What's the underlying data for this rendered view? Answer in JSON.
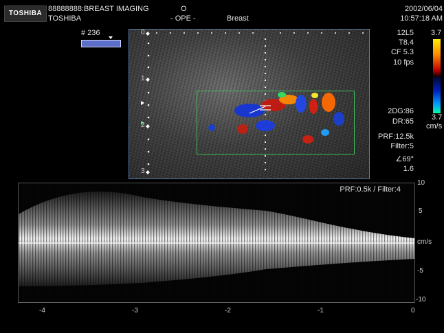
{
  "header": {
    "logo": "TOSHIBA",
    "patient_line1": "88888888:BREAST IMAGING",
    "patient_line2": "TOSHIBA",
    "operator_mark": "O",
    "operator_label": "- OPE -",
    "exam": "Breast",
    "date": "2002/06/04",
    "time": "10:57:18 AM"
  },
  "image_number": "# 236",
  "params_top": {
    "probe": "12L5",
    "t_value": "T8.4",
    "cf": "CF 5.3",
    "fps": "10 fps",
    "scale_top": "3.7",
    "scale_bottom": "3.7",
    "scale_unit": "cm/s"
  },
  "params_mid": {
    "dg": "2DG:86",
    "dr": "DR:65",
    "prf": "PRF:12.5k",
    "filter": "Filter:5",
    "angle": "∠69°",
    "depth_val": "1.6"
  },
  "depth_labels": [
    "0",
    "1",
    "2",
    "3"
  ],
  "doppler": {
    "prf_filter": "PRF:0.5k / Filter:4",
    "y_labels": [
      "10",
      "5",
      "cm/s",
      "-5",
      "-10"
    ],
    "x_labels": [
      "-4",
      "-3",
      "-2",
      "-1",
      "0"
    ]
  },
  "colors": {
    "bmode_border": "#5a7ea8",
    "roi_box": "#3fbf5a",
    "baseline": "#ffffff"
  }
}
